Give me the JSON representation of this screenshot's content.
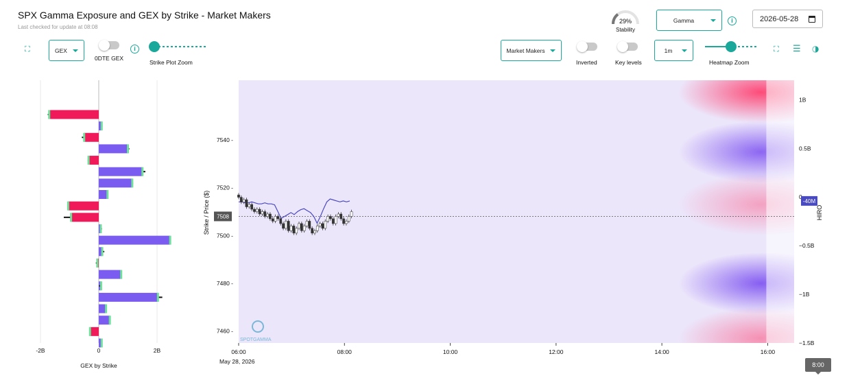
{
  "header": {
    "title": "SPX Gamma Exposure and GEX by Strike - Market Makers",
    "subtitle": "Last checked for update at 08:08",
    "stability_value": "29%",
    "stability_label": "Stability",
    "stability_fraction": 0.29,
    "metric_select": "Gamma",
    "date": "2026-05-28"
  },
  "toolbar": {
    "gex_select": "GEX",
    "odte_label": "0DTE GEX",
    "odte_on": false,
    "strike_zoom_label": "Strike Plot Zoom",
    "strike_zoom_fraction": 0.0,
    "participant_select": "Market Makers",
    "inverted_label": "Inverted",
    "inverted_on": false,
    "key_levels_label": "Key levels",
    "key_levels_on": false,
    "interval_select": "1m",
    "heatmap_zoom_label": "Heatmap Zoom",
    "heatmap_zoom_fraction": 0.5
  },
  "colors": {
    "accent": "#1aa89a",
    "positive_bar": "#7b5cf0",
    "negative_bar": "#f0195a",
    "hiro_line": "#4a4ac0",
    "price_up": "#ffffff",
    "price_down": "#333333"
  },
  "chart_data": [
    {
      "type": "bar",
      "orientation": "horizontal",
      "xlabel": "GEX by Strike",
      "xlim": [
        -2.5,
        2.5
      ],
      "x_ticks": [
        "-2B",
        "0",
        "2B"
      ],
      "x_tick_values": [
        -2,
        0,
        2
      ],
      "ylim": [
        7455,
        7570
      ],
      "strike_step": 5,
      "strikes": [
        7555,
        7550,
        7545,
        7540,
        7535,
        7530,
        7525,
        7520,
        7515,
        7510,
        7505,
        7500,
        7495,
        7490,
        7485,
        7480,
        7475,
        7470,
        7465,
        7460,
        7455
      ],
      "values": [
        -1.7,
        0.1,
        -0.5,
        1.0,
        -0.35,
        1.5,
        1.15,
        0.3,
        -1.05,
        -0.95,
        0.07,
        2.45,
        0.12,
        -0.05,
        0.77,
        0.08,
        2.03,
        0.25,
        0.38,
        -0.3,
        0.1
      ],
      "zero_dte": [
        -0.05,
        0.03,
        -0.08,
        0.05,
        -0.03,
        0.1,
        0.03,
        0.03,
        -0.02,
        -0.25,
        0.04,
        0.01,
        0.07,
        -0.05,
        0.01,
        -0.07,
        0.15,
        0.02,
        0.01,
        -0.01,
        0.01
      ]
    },
    {
      "type": "heatmap",
      "ylabel": "Strike / Price ($)",
      "x_ticks": [
        "06:00",
        "08:00",
        "10:00",
        "12:00",
        "14:00",
        "16:00"
      ],
      "x_date_label": "May 28, 2026",
      "xlim": [
        "06:00",
        "16:30"
      ],
      "ylim": [
        7455,
        7565
      ],
      "y_ticks": [
        7460,
        7480,
        7500,
        7520,
        7540
      ],
      "current_price": 7508,
      "current_price_label": "7508",
      "right_axis_label": "HIRO",
      "right_ticks": [
        "1B",
        "0.5B",
        "0",
        "−0.5B",
        "−1B",
        "−1.5B"
      ],
      "right_tick_values": [
        1,
        0.5,
        0,
        -0.5,
        -1,
        -1.5
      ],
      "right_ylim": [
        -1.5,
        1.2
      ],
      "hiro_current_label": "-40M",
      "hiro_current_value": -0.04,
      "hotspots": [
        {
          "time": "16:00",
          "strike": 7560,
          "kind": "negative",
          "strength": 0.9
        },
        {
          "time": "16:00",
          "strike": 7535,
          "kind": "positive",
          "strength": 0.85
        },
        {
          "time": "16:00",
          "strike": 7513,
          "kind": "negative",
          "strength": 0.4
        },
        {
          "time": "16:00",
          "strike": 7480,
          "kind": "positive",
          "strength": 0.9
        },
        {
          "time": "16:00",
          "strike": 7457,
          "kind": "negative",
          "strength": 0.5
        }
      ],
      "price_candles_close": [
        7516,
        7514,
        7515,
        7512,
        7513,
        7511,
        7510,
        7511,
        7509,
        7510,
        7508,
        7509,
        7507,
        7506,
        7508,
        7507,
        7505,
        7503,
        7506,
        7502,
        7504,
        7501,
        7503,
        7505,
        7502,
        7504,
        7506,
        7503,
        7501,
        7502,
        7504,
        7505,
        7503,
        7506,
        7508,
        7507,
        7505,
        7508,
        7509,
        7507,
        7505,
        7506,
        7508,
        7510
      ],
      "hiro_series": [
        -0.05,
        -0.05,
        -0.06,
        -0.06,
        -0.05,
        -0.06,
        -0.07,
        -0.07,
        -0.06,
        -0.07,
        -0.07,
        -0.08,
        -0.15,
        -0.22,
        -0.2,
        -0.18,
        -0.16,
        -0.18,
        -0.15,
        -0.13,
        -0.12,
        -0.14,
        -0.16,
        -0.2,
        -0.27,
        -0.2,
        -0.12,
        -0.05,
        -0.02,
        -0.03,
        -0.04,
        -0.05,
        -0.04,
        -0.05,
        -0.04
      ]
    }
  ],
  "footer": {
    "tooltip_time": "8:00"
  },
  "branding": {
    "watermark": "SPOTGAMMA"
  }
}
